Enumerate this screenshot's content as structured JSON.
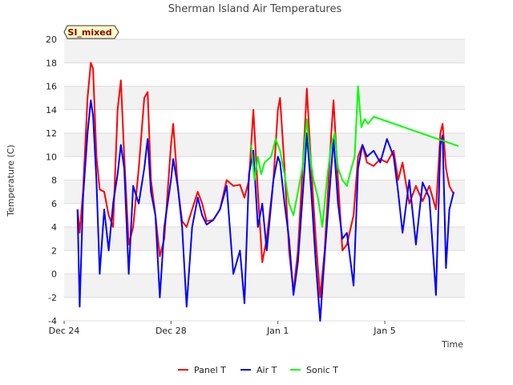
{
  "chart_data": {
    "type": "line",
    "title": "Sherman Island Air Temperatures",
    "xlabel": "Time",
    "ylabel": "Temperature (C)",
    "tag": "SI_mixed",
    "xlim": [
      "2023-12-24",
      "2024-01-08"
    ],
    "ylim": [
      -4,
      20
    ],
    "yticks": [
      -4,
      -2,
      0,
      2,
      4,
      6,
      8,
      10,
      12,
      14,
      16,
      18,
      20
    ],
    "xticks": [
      {
        "date": "2023-12-24",
        "label": "Dec 24"
      },
      {
        "date": "2023-12-28",
        "label": "Dec 28"
      },
      {
        "date": "2024-01-01",
        "label": "Jan 1"
      },
      {
        "date": "2024-01-05",
        "label": "Jan 5"
      }
    ],
    "grid": true,
    "legend_position": "bottom",
    "series": [
      {
        "name": "Panel T",
        "color": "#ff0000",
        "points": [
          [
            "2023-12-24 12:00",
            5.5
          ],
          [
            "2023-12-24 14:00",
            3.5
          ],
          [
            "2023-12-24 17:00",
            7.0
          ],
          [
            "2023-12-24 21:00",
            15.0
          ],
          [
            "2023-12-25 00:00",
            18.0
          ],
          [
            "2023-12-25 02:00",
            17.5
          ],
          [
            "2023-12-25 05:00",
            10.0
          ],
          [
            "2023-12-25 08:00",
            7.2
          ],
          [
            "2023-12-25 12:00",
            7.0
          ],
          [
            "2023-12-25 16:00",
            5.0
          ],
          [
            "2023-12-25 20:00",
            4.0
          ],
          [
            "2023-12-26 00:00",
            14.0
          ],
          [
            "2023-12-26 03:00",
            16.5
          ],
          [
            "2023-12-26 06:00",
            10.0
          ],
          [
            "2023-12-26 10:00",
            2.5
          ],
          [
            "2023-12-26 14:00",
            4.0
          ],
          [
            "2023-12-26 19:00",
            9.0
          ],
          [
            "2023-12-27 00:00",
            15.0
          ],
          [
            "2023-12-27 03:00",
            15.5
          ],
          [
            "2023-12-27 06:00",
            8.0
          ],
          [
            "2023-12-27 10:00",
            5.0
          ],
          [
            "2023-12-27 14:00",
            1.5
          ],
          [
            "2023-12-27 18:00",
            3.0
          ],
          [
            "2023-12-28 00:00",
            11.0
          ],
          [
            "2023-12-28 02:00",
            12.8
          ],
          [
            "2023-12-28 06:00",
            7.5
          ],
          [
            "2023-12-28 10:00",
            4.5
          ],
          [
            "2023-12-28 14:00",
            4.0
          ],
          [
            "2023-12-28 19:00",
            5.5
          ],
          [
            "2023-12-29 00:00",
            7.0
          ],
          [
            "2023-12-29 04:00",
            6.0
          ],
          [
            "2023-12-29 08:00",
            4.5
          ],
          [
            "2023-12-29 14:00",
            4.6
          ],
          [
            "2023-12-29 20:00",
            5.5
          ],
          [
            "2023-12-30 02:00",
            8.0
          ],
          [
            "2023-12-30 08:00",
            7.5
          ],
          [
            "2023-12-30 14:00",
            7.6
          ],
          [
            "2023-12-30 18:00",
            6.5
          ],
          [
            "2023-12-30 22:00",
            8.0
          ],
          [
            "2023-12-31 02:00",
            14.0
          ],
          [
            "2023-12-31 06:00",
            7.0
          ],
          [
            "2023-12-31 10:00",
            1.0
          ],
          [
            "2023-12-31 14:00",
            3.0
          ],
          [
            "2023-12-31 20:00",
            8.0
          ],
          [
            "2024-01-01 00:00",
            14.0
          ],
          [
            "2024-01-01 02:00",
            15.0
          ],
          [
            "2024-01-01 06:00",
            9.0
          ],
          [
            "2024-01-01 10:00",
            2.0
          ],
          [
            "2024-01-01 14:00",
            -1.5
          ],
          [
            "2024-01-01 18:00",
            2.0
          ],
          [
            "2024-01-02 00:00",
            12.0
          ],
          [
            "2024-01-02 02:00",
            15.8
          ],
          [
            "2024-01-02 06:00",
            9.0
          ],
          [
            "2024-01-02 10:00",
            3.0
          ],
          [
            "2024-01-02 14:00",
            -2.0
          ],
          [
            "2024-01-02 18:00",
            2.0
          ],
          [
            "2024-01-03 00:00",
            12.0
          ],
          [
            "2024-01-03 02:00",
            14.8
          ],
          [
            "2024-01-03 06:00",
            8.0
          ],
          [
            "2024-01-03 10:00",
            2.0
          ],
          [
            "2024-01-03 14:00",
            2.5
          ],
          [
            "2024-01-03 20:00",
            5.0
          ],
          [
            "2024-01-04 00:00",
            10.0
          ],
          [
            "2024-01-04 04:00",
            11.0
          ],
          [
            "2024-01-04 08:00",
            9.5
          ],
          [
            "2024-01-04 14:00",
            9.2
          ],
          [
            "2024-01-04 20:00",
            9.8
          ],
          [
            "2024-01-05 02:00",
            9.5
          ],
          [
            "2024-01-05 08:00",
            10.5
          ],
          [
            "2024-01-05 12:00",
            8.0
          ],
          [
            "2024-01-05 16:00",
            9.5
          ],
          [
            "2024-01-05 22:00",
            6.0
          ],
          [
            "2024-01-06 04:00",
            7.5
          ],
          [
            "2024-01-06 10:00",
            6.2
          ],
          [
            "2024-01-06 16:00",
            7.5
          ],
          [
            "2024-01-06 22:00",
            5.5
          ],
          [
            "2024-01-07 02:00",
            12.0
          ],
          [
            "2024-01-07 04:00",
            12.8
          ],
          [
            "2024-01-07 07:00",
            9.0
          ],
          [
            "2024-01-07 10:00",
            7.5
          ],
          [
            "2024-01-07 14:00",
            6.8
          ]
        ]
      },
      {
        "name": "Air T",
        "color": "#0000ff",
        "points": [
          [
            "2023-12-24 12:00",
            5.5
          ],
          [
            "2023-12-24 14:00",
            -2.8
          ],
          [
            "2023-12-24 17:00",
            6.5
          ],
          [
            "2023-12-24 21:00",
            12.0
          ],
          [
            "2023-12-25 00:00",
            14.8
          ],
          [
            "2023-12-25 02:00",
            13.5
          ],
          [
            "2023-12-25 05:00",
            8.0
          ],
          [
            "2023-12-25 08:00",
            0.0
          ],
          [
            "2023-12-25 12:00",
            5.5
          ],
          [
            "2023-12-25 16:00",
            2.0
          ],
          [
            "2023-12-25 20:00",
            6.0
          ],
          [
            "2023-12-26 00:00",
            8.5
          ],
          [
            "2023-12-26 03:00",
            11.0
          ],
          [
            "2023-12-26 06:00",
            9.0
          ],
          [
            "2023-12-26 10:00",
            0.0
          ],
          [
            "2023-12-26 14:00",
            7.5
          ],
          [
            "2023-12-26 19:00",
            6.0
          ],
          [
            "2023-12-27 00:00",
            9.0
          ],
          [
            "2023-12-27 03:00",
            11.5
          ],
          [
            "2023-12-27 06:00",
            7.0
          ],
          [
            "2023-12-27 10:00",
            5.0
          ],
          [
            "2023-12-27 14:00",
            -2.0
          ],
          [
            "2023-12-27 18:00",
            4.0
          ],
          [
            "2023-12-28 00:00",
            8.0
          ],
          [
            "2023-12-28 02:00",
            9.8
          ],
          [
            "2023-12-28 06:00",
            7.5
          ],
          [
            "2023-12-28 10:00",
            4.0
          ],
          [
            "2023-12-28 14:00",
            -2.8
          ],
          [
            "2023-12-28 19:00",
            4.0
          ],
          [
            "2023-12-29 00:00",
            6.5
          ],
          [
            "2023-12-29 04:00",
            5.0
          ],
          [
            "2023-12-29 08:00",
            4.2
          ],
          [
            "2023-12-29 14:00",
            4.6
          ],
          [
            "2023-12-29 20:00",
            5.5
          ],
          [
            "2023-12-30 02:00",
            7.5
          ],
          [
            "2023-12-30 08:00",
            0.0
          ],
          [
            "2023-12-30 14:00",
            2.0
          ],
          [
            "2023-12-30 18:00",
            -2.5
          ],
          [
            "2023-12-30 22:00",
            8.5
          ],
          [
            "2023-12-31 02:00",
            10.5
          ],
          [
            "2023-12-31 06:00",
            4.0
          ],
          [
            "2023-12-31 10:00",
            6.0
          ],
          [
            "2023-12-31 14:00",
            2.0
          ],
          [
            "2023-12-31 20:00",
            8.0
          ],
          [
            "2024-01-01 00:00",
            10.0
          ],
          [
            "2024-01-01 02:00",
            9.5
          ],
          [
            "2024-01-01 06:00",
            6.0
          ],
          [
            "2024-01-01 10:00",
            3.0
          ],
          [
            "2024-01-01 14:00",
            -1.8
          ],
          [
            "2024-01-01 18:00",
            1.0
          ],
          [
            "2024-01-02 00:00",
            9.0
          ],
          [
            "2024-01-02 02:00",
            12.0
          ],
          [
            "2024-01-02 06:00",
            7.0
          ],
          [
            "2024-01-02 10:00",
            1.0
          ],
          [
            "2024-01-02 14:00",
            -4.0
          ],
          [
            "2024-01-02 18:00",
            1.5
          ],
          [
            "2024-01-03 00:00",
            9.0
          ],
          [
            "2024-01-03 02:00",
            11.5
          ],
          [
            "2024-01-03 06:00",
            6.0
          ],
          [
            "2024-01-03 10:00",
            3.0
          ],
          [
            "2024-01-03 14:00",
            3.5
          ],
          [
            "2024-01-03 20:00",
            -1.0
          ],
          [
            "2024-01-04 00:00",
            9.0
          ],
          [
            "2024-01-04 04:00",
            11.0
          ],
          [
            "2024-01-04 08:00",
            10.0
          ],
          [
            "2024-01-04 14:00",
            10.5
          ],
          [
            "2024-01-04 20:00",
            9.5
          ],
          [
            "2024-01-05 02:00",
            11.5
          ],
          [
            "2024-01-05 08:00",
            10.0
          ],
          [
            "2024-01-05 12:00",
            7.0
          ],
          [
            "2024-01-05 16:00",
            3.5
          ],
          [
            "2024-01-05 22:00",
            8.0
          ],
          [
            "2024-01-06 04:00",
            2.5
          ],
          [
            "2024-01-06 10:00",
            7.8
          ],
          [
            "2024-01-06 16:00",
            6.5
          ],
          [
            "2024-01-06 22:00",
            -1.8
          ],
          [
            "2024-01-07 02:00",
            11.0
          ],
          [
            "2024-01-07 04:00",
            11.8
          ],
          [
            "2024-01-07 07:00",
            0.5
          ],
          [
            "2024-01-07 10:00",
            5.5
          ],
          [
            "2024-01-07 14:00",
            7.0
          ]
        ]
      },
      {
        "name": "Sonic T",
        "color": "#00ff00",
        "points": [
          [
            "2023-12-31 00:00",
            11.0
          ],
          [
            "2023-12-31 03:00",
            8.0
          ],
          [
            "2023-12-31 06:00",
            10.0
          ],
          [
            "2023-12-31 09:00",
            8.5
          ],
          [
            "2023-12-31 12:00",
            9.5
          ],
          [
            "2023-12-31 18:00",
            10.0
          ],
          [
            "2023-12-31 22:00",
            11.5
          ],
          [
            "2024-01-01 02:00",
            10.5
          ],
          [
            "2024-01-01 06:00",
            8.5
          ],
          [
            "2024-01-01 10:00",
            6.0
          ],
          [
            "2024-01-01 14:00",
            5.0
          ],
          [
            "2024-01-01 18:00",
            7.0
          ],
          [
            "2024-01-01 22:00",
            9.0
          ],
          [
            "2024-01-02 02:00",
            13.2
          ],
          [
            "2024-01-02 05:00",
            10.0
          ],
          [
            "2024-01-02 08:00",
            8.0
          ],
          [
            "2024-01-02 12:00",
            6.5
          ],
          [
            "2024-01-02 16:00",
            4.0
          ],
          [
            "2024-01-02 20:00",
            8.0
          ],
          [
            "2024-01-03 00:00",
            11.0
          ],
          [
            "2024-01-03 03:00",
            12.0
          ],
          [
            "2024-01-03 06:00",
            9.0
          ],
          [
            "2024-01-03 10:00",
            8.0
          ],
          [
            "2024-01-03 14:00",
            7.5
          ],
          [
            "2024-01-03 18:00",
            9.0
          ],
          [
            "2024-01-03 21:00",
            10.0
          ],
          [
            "2024-01-04 00:00",
            16.0
          ],
          [
            "2024-01-04 03:00",
            12.5
          ],
          [
            "2024-01-04 06:00",
            13.2
          ],
          [
            "2024-01-04 09:00",
            12.8
          ],
          [
            "2024-01-04 14:00",
            13.4
          ],
          [
            "2024-01-07 18:00",
            10.9
          ]
        ]
      }
    ]
  }
}
